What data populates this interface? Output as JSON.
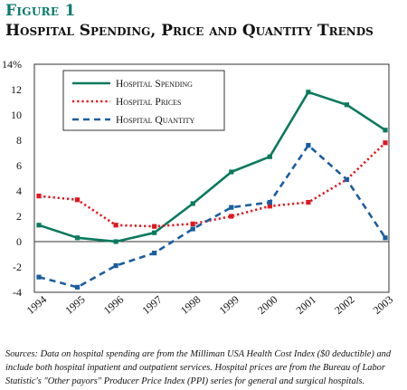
{
  "figure": {
    "label": "Figure 1",
    "title": "Hospital Spending, Price and Quantity Trends",
    "source": "Sources: Data on hospital spending are from the Milliman USA Health Cost Index ($0 deductible) and include both hospital inpatient and outpatient services. Hospital prices are from the Bureau of Labor Statistic's \"Other payors\" Producer Price Index (PPI) series for general and surgical hospitals."
  },
  "chart_data": {
    "type": "line",
    "x": [
      "1994",
      "1995",
      "1996",
      "1997",
      "1998",
      "1999",
      "2000",
      "2001",
      "2002",
      "2003"
    ],
    "ylim": [
      -4,
      14
    ],
    "yticks": [
      "-4",
      "-2",
      "0",
      "2",
      "4",
      "6",
      "8",
      "10",
      "12",
      "14%"
    ],
    "grid": false,
    "legend_position": "top-left",
    "series": [
      {
        "name": "Hospital Spending",
        "color": "#0a7a5e",
        "style": "solid",
        "values": [
          1.3,
          0.3,
          0.0,
          0.7,
          3.0,
          5.5,
          6.7,
          11.8,
          10.8,
          8.8
        ]
      },
      {
        "name": "Hospital Prices",
        "color": "#e0171f",
        "style": "dotted",
        "values": [
          3.6,
          3.3,
          1.3,
          1.2,
          1.4,
          2.0,
          2.8,
          3.1,
          4.9,
          7.8
        ]
      },
      {
        "name": "Hospital Quantity",
        "color": "#1a5ea1",
        "style": "dashed",
        "values": [
          -2.8,
          -3.6,
          -1.9,
          -0.9,
          1.0,
          2.7,
          3.1,
          7.6,
          4.9,
          0.3
        ]
      }
    ]
  }
}
